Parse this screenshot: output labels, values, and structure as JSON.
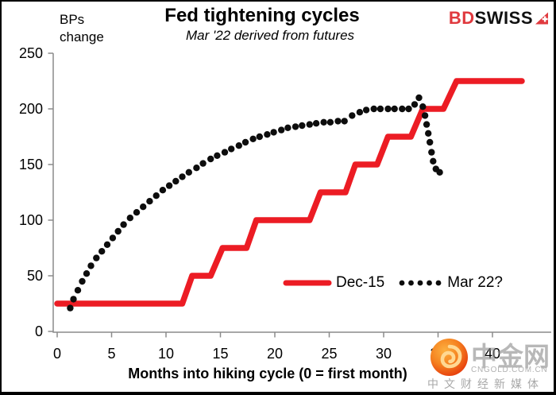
{
  "header": {
    "y_axis_note": "BPs\nchange",
    "title": "Fed tightening cycles",
    "subtitle": "Mar '22 derived from futures",
    "brand": {
      "part1": "BD",
      "part2": "SWISS"
    }
  },
  "chart_data": {
    "type": "line",
    "title": "Fed tightening cycles",
    "subtitle": "Mar '22 derived from futures",
    "xlabel": "Months into hiking cycle (0 = first month)",
    "ylabel": "BPs change",
    "xlim": [
      0,
      45.5
    ],
    "ylim": [
      0,
      250
    ],
    "x_ticks": [
      0,
      5,
      10,
      15,
      20,
      25,
      30,
      35,
      40
    ],
    "y_ticks": [
      0,
      50,
      100,
      150,
      200,
      250
    ],
    "grid": false,
    "legend_position": "inside-lower-right",
    "series": [
      {
        "name": "Dec-15",
        "style": "solid-step-line",
        "color": "#ec1c24",
        "stroke_width": 7.5,
        "points": [
          [
            0,
            25
          ],
          [
            11.5,
            25
          ],
          [
            12.4,
            50
          ],
          [
            14.1,
            50
          ],
          [
            15.2,
            75
          ],
          [
            17.4,
            75
          ],
          [
            18.3,
            100
          ],
          [
            23.2,
            100
          ],
          [
            24.2,
            125
          ],
          [
            26.5,
            125
          ],
          [
            27.4,
            150
          ],
          [
            29.4,
            150
          ],
          [
            30.4,
            175
          ],
          [
            32.5,
            175
          ],
          [
            33.6,
            200
          ],
          [
            35.5,
            200
          ],
          [
            36.7,
            225
          ],
          [
            42.7,
            225
          ]
        ]
      },
      {
        "name": "Mar 22?",
        "style": "dotted",
        "color": "#0d0d0d",
        "dot_radius": 4.2,
        "points": [
          [
            1.2,
            21
          ],
          [
            1.5,
            29
          ],
          [
            1.9,
            37
          ],
          [
            2.3,
            45
          ],
          [
            2.7,
            52
          ],
          [
            3.1,
            59
          ],
          [
            3.6,
            66
          ],
          [
            4.1,
            72
          ],
          [
            4.6,
            78
          ],
          [
            5.1,
            84
          ],
          [
            5.6,
            90
          ],
          [
            6.1,
            96
          ],
          [
            6.7,
            102
          ],
          [
            7.3,
            107
          ],
          [
            7.9,
            112
          ],
          [
            8.5,
            117
          ],
          [
            9.1,
            122
          ],
          [
            9.7,
            127
          ],
          [
            10.3,
            131
          ],
          [
            10.9,
            135
          ],
          [
            11.5,
            139
          ],
          [
            12.1,
            143
          ],
          [
            12.8,
            147
          ],
          [
            13.4,
            151
          ],
          [
            14.1,
            155
          ],
          [
            14.7,
            158
          ],
          [
            15.4,
            161
          ],
          [
            16.0,
            164
          ],
          [
            16.7,
            167
          ],
          [
            17.3,
            170
          ],
          [
            18.0,
            173
          ],
          [
            18.6,
            175
          ],
          [
            19.3,
            177
          ],
          [
            19.9,
            179
          ],
          [
            20.6,
            181
          ],
          [
            21.2,
            183
          ],
          [
            21.9,
            184
          ],
          [
            22.5,
            185
          ],
          [
            23.2,
            186
          ],
          [
            23.8,
            187
          ],
          [
            24.5,
            188
          ],
          [
            25.1,
            188
          ],
          [
            25.8,
            189
          ],
          [
            26.4,
            189
          ],
          [
            27.1,
            194
          ],
          [
            27.8,
            197
          ],
          [
            28.4,
            199
          ],
          [
            29.1,
            200
          ],
          [
            29.7,
            200
          ],
          [
            30.4,
            200
          ],
          [
            31.0,
            200
          ],
          [
            31.7,
            200
          ],
          [
            32.3,
            200
          ],
          [
            32.85,
            204
          ],
          [
            33.25,
            210
          ],
          [
            33.6,
            202
          ],
          [
            33.8,
            194
          ],
          [
            33.95,
            186
          ],
          [
            34.1,
            178
          ],
          [
            34.25,
            170
          ],
          [
            34.4,
            161
          ],
          [
            34.55,
            153
          ],
          [
            34.8,
            146
          ],
          [
            35.15,
            143
          ]
        ]
      }
    ]
  },
  "legend": {
    "items": [
      {
        "label": "Dec-15",
        "swatch": "red-line"
      },
      {
        "label": "Mar 22?",
        "swatch": "black-dots"
      }
    ]
  },
  "watermark": {
    "name": "中金网",
    "domain": "CNGOLD.COM.CN",
    "tagline": "中文财经新媒体"
  },
  "colors": {
    "series_red": "#ec1c24",
    "series_black": "#0d0d0d",
    "brand_red": "#e0393e",
    "axis_gray": "#8a8a8a",
    "watermark_orange": "#e8430e",
    "watermark_gray": "#a8a8a8"
  }
}
